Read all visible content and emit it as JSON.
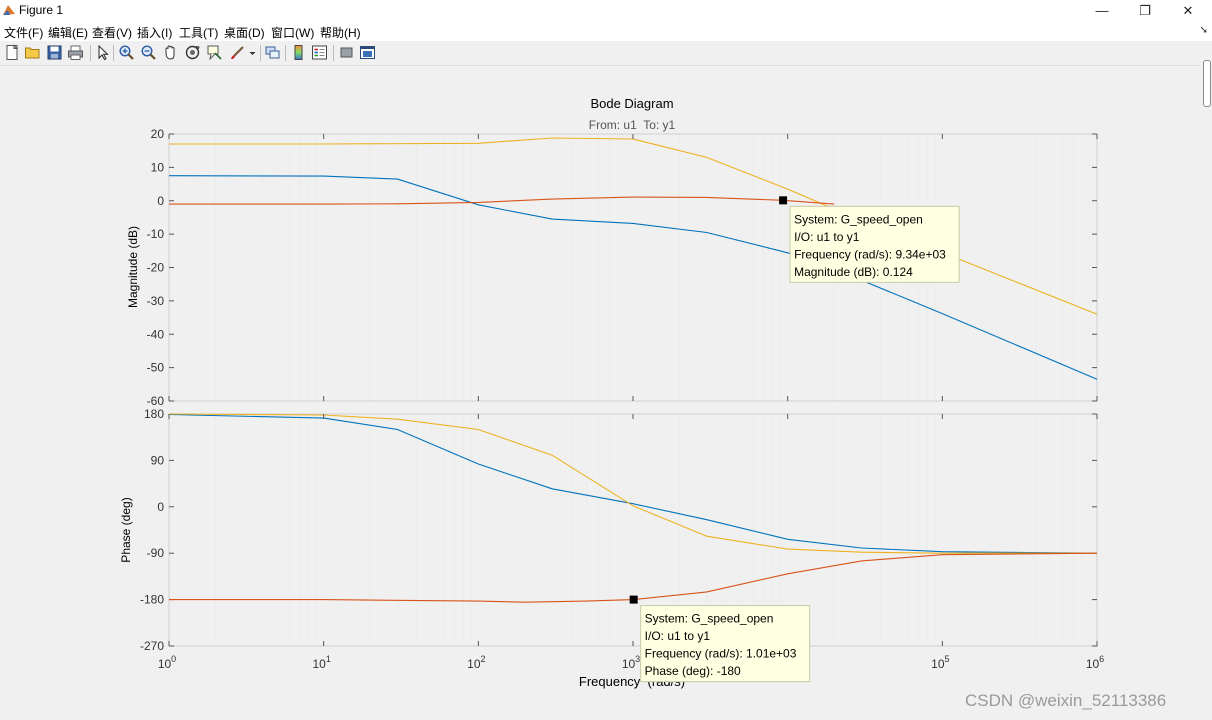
{
  "window": {
    "title": "Figure 1",
    "controls": [
      "—",
      "❐",
      "✕"
    ]
  },
  "menu": [
    "文件(F)",
    "编辑(E)",
    "查看(V)",
    "插入(I)",
    "工具(T)",
    "桌面(D)",
    "窗口(W)",
    "帮助(H)"
  ],
  "toolbar_icons": [
    "new-figure-icon",
    "open-file-icon",
    "save-icon",
    "print-icon",
    "pointer-icon",
    "zoom-in-icon",
    "zoom-out-icon",
    "pan-icon",
    "rotate-icon",
    "data-cursor-icon",
    "brush-icon",
    "link-icon",
    "insert-colorbar-icon",
    "insert-legend-icon",
    "hide-plot-tools-icon",
    "show-plot-tools-icon"
  ],
  "chart_data": {
    "type": "line",
    "title": "Bode Diagram",
    "subtitle": "From: u1  To: y1",
    "xlabel": "Frequency  (rad/s)",
    "x_scale": "log",
    "xlim": [
      1,
      1000000
    ],
    "x_ticks": [
      {
        "base": "10",
        "exp": "0"
      },
      {
        "base": "10",
        "exp": "1"
      },
      {
        "base": "10",
        "exp": "2"
      },
      {
        "base": "10",
        "exp": "3"
      },
      {
        "base": "10",
        "exp": "4"
      },
      {
        "base": "10",
        "exp": "5"
      },
      {
        "base": "10",
        "exp": "6"
      }
    ],
    "colors": {
      "blue": "#0072bd",
      "orange": "#edb120",
      "red": "#d95319"
    },
    "magnitude": {
      "ylabel": "Magnitude (dB)",
      "ylim": [
        -60,
        20
      ],
      "yticks": [
        20,
        10,
        0,
        -10,
        -20,
        -30,
        -40,
        -50,
        -60
      ],
      "series": [
        {
          "color": "#0072bd",
          "x": [
            1,
            10,
            30,
            100,
            300,
            1000,
            3000,
            10000,
            30000,
            100000,
            1000000
          ],
          "y": [
            7.5,
            7.4,
            6.5,
            -1.2,
            -5.5,
            -6.8,
            -9.5,
            -15.6,
            -23.8,
            -33.8,
            -53.5
          ]
        },
        {
          "color": "#edb120",
          "x": [
            1,
            10,
            100,
            300,
            1000,
            3000,
            10000,
            30000,
            100000,
            1000000
          ],
          "y": [
            17,
            17,
            17.2,
            18.8,
            18.5,
            13,
            3.5,
            -6,
            -15.5,
            -34
          ]
        },
        {
          "color": "#d95319",
          "x": [
            1,
            10,
            30,
            100,
            300,
            1000,
            3000,
            9340,
            20000
          ],
          "y": [
            -1,
            -1,
            -0.9,
            -0.5,
            0.5,
            1.1,
            1,
            0.124,
            -1
          ]
        }
      ],
      "datatip": {
        "x": 9340,
        "y": 0.124,
        "lines": [
          "System: G_speed_open",
          "I/O: u1 to y1",
          "Frequency (rad/s): 9.34e+03",
          "Magnitude (dB): 0.124"
        ]
      }
    },
    "phase": {
      "ylabel": "Phase (deg)",
      "ylim": [
        -270,
        180
      ],
      "yticks": [
        180,
        90,
        0,
        -90,
        -180,
        -270
      ],
      "series": [
        {
          "color": "#0072bd",
          "x": [
            1,
            10,
            30,
            100,
            300,
            1000,
            3000,
            10000,
            30000,
            100000,
            1000000
          ],
          "y": [
            179,
            172,
            150,
            83,
            35,
            6,
            -25,
            -63,
            -80,
            -87,
            -90
          ]
        },
        {
          "color": "#edb120",
          "x": [
            1,
            10,
            30,
            100,
            300,
            1000,
            3000,
            10000,
            30000,
            100000,
            1000000
          ],
          "y": [
            180,
            178,
            170,
            150,
            100,
            2,
            -57,
            -82,
            -88,
            -90,
            -90
          ]
        },
        {
          "color": "#d95319",
          "x": [
            1,
            10,
            100,
            200,
            500,
            1010,
            3000,
            10000,
            30000,
            100000,
            1000000
          ],
          "y": [
            -180,
            -180,
            -183,
            -185,
            -183,
            -180,
            -165,
            -130,
            -105,
            -93,
            -90
          ]
        }
      ],
      "datatip": {
        "x": 1010,
        "y": -180,
        "lines": [
          "System: G_speed_open",
          "I/O: u1 to y1",
          "Frequency (rad/s): 1.01e+03",
          "Phase (deg): -180"
        ]
      }
    }
  },
  "watermark": "CSDN @weixin_52113386"
}
